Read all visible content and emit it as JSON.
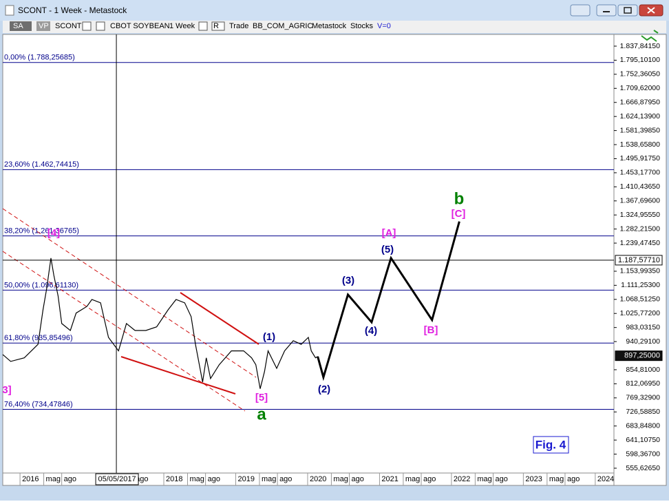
{
  "window": {
    "title": "SCONT - 1 Week - Metastock"
  },
  "toolbar": {
    "items": [
      "SA",
      "VP",
      "SCONT",
      "CBOT SOYBEAN",
      "1 Week",
      "R",
      "Trade",
      "BB_COM_AGRIC",
      "Metastock",
      "Stocks",
      "V=0"
    ]
  },
  "chart_data": {
    "type": "line",
    "xlim": [
      2015.76,
      2024.26
    ],
    "ylim": [
      541.0,
      1873.4
    ],
    "xticks": [
      {
        "value": 2016,
        "label": "2016"
      },
      {
        "value": 2016.33,
        "label": "mag"
      },
      {
        "value": 2016.58,
        "label": "ago"
      },
      {
        "value": 2017.58,
        "label": "ago"
      },
      {
        "value": 2018,
        "label": "2018"
      },
      {
        "value": 2018.33,
        "label": "mag"
      },
      {
        "value": 2018.58,
        "label": "ago"
      },
      {
        "value": 2019,
        "label": "2019"
      },
      {
        "value": 2019.33,
        "label": "mag"
      },
      {
        "value": 2019.58,
        "label": "ago"
      },
      {
        "value": 2020,
        "label": "2020"
      },
      {
        "value": 2020.33,
        "label": "mag"
      },
      {
        "value": 2020.58,
        "label": "ago"
      },
      {
        "value": 2021,
        "label": "2021"
      },
      {
        "value": 2021.33,
        "label": "mag"
      },
      {
        "value": 2021.58,
        "label": "ago"
      },
      {
        "value": 2022,
        "label": "2022"
      },
      {
        "value": 2022.33,
        "label": "mag"
      },
      {
        "value": 2022.58,
        "label": "ago"
      },
      {
        "value": 2023,
        "label": "2023"
      },
      {
        "value": 2023.33,
        "label": "mag"
      },
      {
        "value": 2023.58,
        "label": "ago"
      },
      {
        "value": 2024,
        "label": "2024"
      }
    ],
    "cursor": {
      "value": 2017.34,
      "label": "05/05/2017"
    },
    "yticks": [
      {
        "value": 1837.8415,
        "label": "1.837,84150"
      },
      {
        "value": 1795.101,
        "label": "1.795,10100"
      },
      {
        "value": 1752.3605,
        "label": "1.752,36050"
      },
      {
        "value": 1709.62,
        "label": "1.709,62000"
      },
      {
        "value": 1666.8795,
        "label": "1.666,87950"
      },
      {
        "value": 1624.139,
        "label": "1.624,13900"
      },
      {
        "value": 1581.3985,
        "label": "1.581,39850"
      },
      {
        "value": 1538.658,
        "label": "1.538,65800"
      },
      {
        "value": 1495.9175,
        "label": "1.495,91750"
      },
      {
        "value": 1453.177,
        "label": "1.453,17700"
      },
      {
        "value": 1410.4365,
        "label": "1.410,43650"
      },
      {
        "value": 1367.696,
        "label": "1.367,69600"
      },
      {
        "value": 1324.9555,
        "label": "1.324,95550"
      },
      {
        "value": 1282.215,
        "label": "1.282,21500"
      },
      {
        "value": 1239.4745,
        "label": "1.239,47450"
      },
      {
        "value": 1153.9935,
        "label": "1.153,99350"
      },
      {
        "value": 1111.253,
        "label": "1.111,25300"
      },
      {
        "value": 1068.5125,
        "label": "1.068,51250"
      },
      {
        "value": 1025.772,
        "label": "1.025,77200"
      },
      {
        "value": 983.0315,
        "label": "983,03150"
      },
      {
        "value": 940.291,
        "label": "940,29100"
      },
      {
        "value": 854.81,
        "label": "854,81000"
      },
      {
        "value": 812.0695,
        "label": "812,06950"
      },
      {
        "value": 769.329,
        "label": "769,32900"
      },
      {
        "value": 726.5885,
        "label": "726,58850"
      },
      {
        "value": 683.848,
        "label": "683,84800"
      },
      {
        "value": 641.1075,
        "label": "641,10750"
      },
      {
        "value": 598.367,
        "label": "598,36700"
      },
      {
        "value": 555.6265,
        "label": "555,62650"
      }
    ],
    "levels": [
      {
        "label": "0,00% (1.788,25685)",
        "value": 1788.25685
      },
      {
        "label": "23,60% (1.462,74415)",
        "value": 1462.74415
      },
      {
        "label": "38,20% (1.261,36765)",
        "value": 1261.36765
      },
      {
        "label": "50,00% (1.096,61130)",
        "value": 1096.6113
      },
      {
        "label": "61,80% (935,85496)",
        "value": 935.85496
      },
      {
        "label": "76,40% (734,47846)",
        "value": 734.47846
      }
    ],
    "level_color": "#00008b",
    "price_markers": [
      {
        "value": 1187.5771,
        "label": "1.187,57710"
      },
      {
        "value": 897.25,
        "label": "897,25000"
      }
    ],
    "series": [
      {
        "color": "#000000",
        "x": [
          2015.76,
          2015.87,
          2016.06,
          2016.25,
          2016.32,
          2016.37,
          2016.43,
          2016.47,
          2016.53,
          2016.58,
          2016.7,
          2016.78,
          2016.93,
          2017.0,
          2017.12,
          2017.23,
          2017.37,
          2017.48,
          2017.6,
          2017.75,
          2017.9,
          2018.06,
          2018.17,
          2018.29,
          2018.38,
          2018.44,
          2018.54,
          2018.59,
          2018.65,
          2018.77,
          2018.94,
          2019.11,
          2019.22,
          2019.28,
          2019.34,
          2019.4,
          2019.45,
          2019.57,
          2019.68,
          2019.8,
          2019.91,
          2020.01,
          2020.05,
          2020.11,
          2020.14
        ],
        "values": [
          901,
          880,
          891,
          932,
          1037,
          1100,
          1194,
          1142,
          1079,
          995,
          974,
          1027,
          1047,
          1068,
          1058,
          953,
          912,
          995,
          974,
          974,
          985,
          1037,
          1068,
          1058,
          1016,
          932,
          817,
          891,
          828,
          870,
          912,
          912,
          891,
          870,
          797,
          849,
          912,
          859,
          912,
          943,
          932,
          953,
          912,
          891,
          895
        ]
      },
      {
        "color": "#000000",
        "x": [
          2020.14,
          2020.22,
          2020.56,
          2020.89,
          2021.16,
          2021.73,
          2022.11
        ],
        "values": [
          895,
          832,
          1083,
          999,
          1194,
          1006,
          1305
        ]
      }
    ],
    "wave_labels": [
      {
        "text": "[4]",
        "color": "#e020e0"
      },
      {
        "text": "3]",
        "color": "#e020e0"
      },
      {
        "text": "[5]",
        "color": "#e020e0"
      },
      {
        "text": "a",
        "color": "#008000"
      },
      {
        "text": "(1)",
        "color": "#00008b"
      },
      {
        "text": "(2)",
        "color": "#00008b"
      },
      {
        "text": "(3)",
        "color": "#00008b"
      },
      {
        "text": "(4)",
        "color": "#00008b"
      },
      {
        "text": "(5)",
        "color": "#00008b"
      },
      {
        "text": "[A]",
        "color": "#e020e0"
      },
      {
        "text": "[B]",
        "color": "#e020e0"
      },
      {
        "text": "[C]",
        "color": "#e020e0"
      },
      {
        "text": "b",
        "color": "#008000"
      }
    ],
    "annotation": "Fig. 4"
  }
}
